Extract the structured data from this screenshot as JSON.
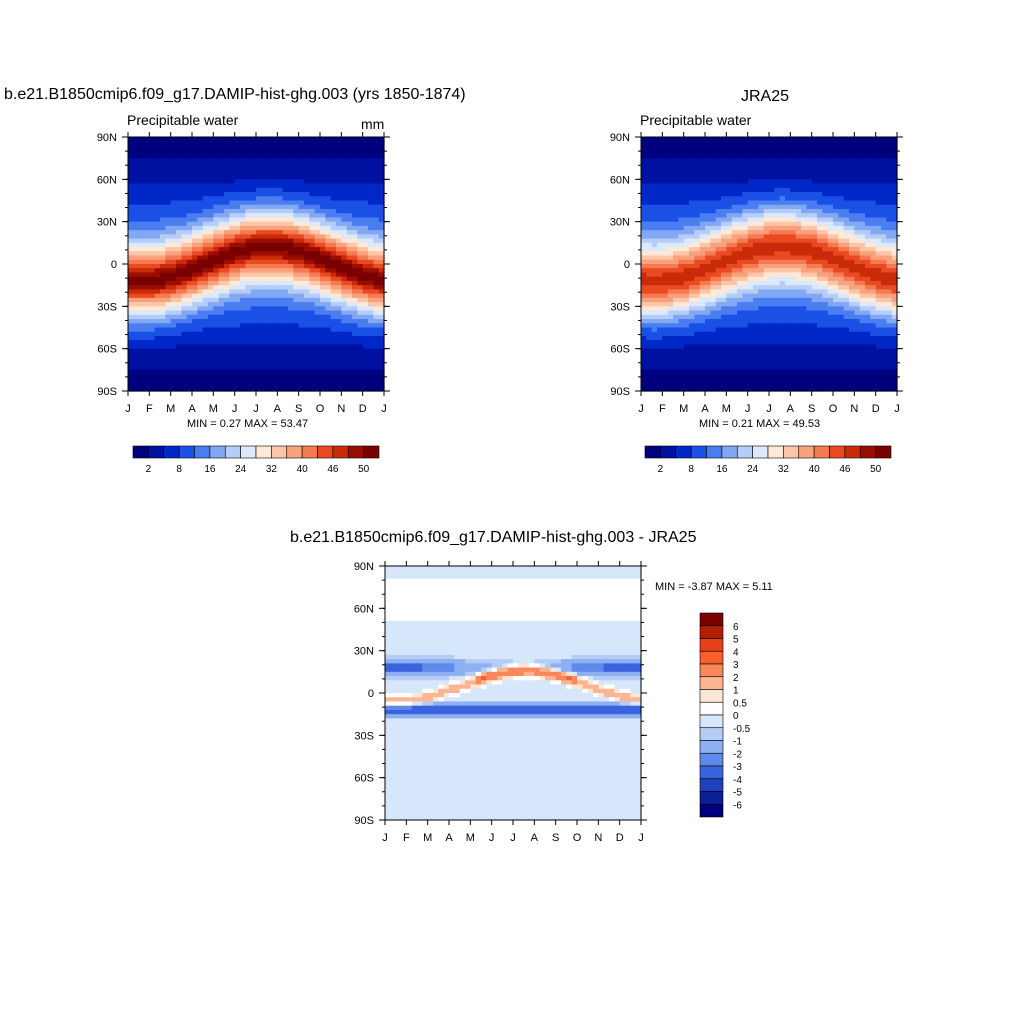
{
  "chart_data": [
    {
      "type": "heatmap",
      "title": "b.e21.B1850cmip6.f09_g17.DAMIP-hist-ghg.003 (yrs 1850-1874)",
      "subtitle_left": "Precipitable water",
      "subtitle_right": "mm",
      "x_ticks": [
        "J",
        "F",
        "M",
        "A",
        "M",
        "J",
        "J",
        "A",
        "S",
        "O",
        "N",
        "D",
        "J"
      ],
      "y_ticks": [
        "90N",
        "60N",
        "30N",
        "0",
        "30S",
        "60S",
        "90S"
      ],
      "stats_text": "MIN =   0.27 MAX =  53.47",
      "min": 0.27,
      "max": 53.47,
      "colorbar_labels": [
        "2",
        "8",
        "16",
        "24",
        "32",
        "40",
        "46",
        "50"
      ],
      "colorbar_orientation": "horizontal"
    },
    {
      "type": "heatmap",
      "title": "JRA25",
      "subtitle_left": "Precipitable water",
      "x_ticks": [
        "J",
        "F",
        "M",
        "A",
        "M",
        "J",
        "J",
        "A",
        "S",
        "O",
        "N",
        "D",
        "J"
      ],
      "y_ticks": [
        "90N",
        "60N",
        "30N",
        "0",
        "30S",
        "60S",
        "90S"
      ],
      "stats_text": "MIN =   0.21 MAX =  49.53",
      "min": 0.21,
      "max": 49.53,
      "colorbar_labels": [
        "2",
        "8",
        "16",
        "24",
        "32",
        "40",
        "46",
        "50"
      ],
      "colorbar_orientation": "horizontal"
    },
    {
      "type": "heatmap",
      "title": "b.e21.B1850cmip6.f09_g17.DAMIP-hist-ghg.003 - JRA25",
      "x_ticks": [
        "J",
        "F",
        "M",
        "A",
        "M",
        "J",
        "J",
        "A",
        "S",
        "O",
        "N",
        "D",
        "J"
      ],
      "y_ticks": [
        "90N",
        "60N",
        "30N",
        "0",
        "30S",
        "60S",
        "90S"
      ],
      "stats_text": "MIN =  -3.87 MAX =   5.11",
      "min": -3.87,
      "max": 5.11,
      "colorbar_labels": [
        "6",
        "5",
        "4",
        "3",
        "2",
        "1",
        "0.5",
        "0",
        "-0.5",
        "-1",
        "-2",
        "-3",
        "-4",
        "-5",
        "-6"
      ],
      "colorbar_orientation": "vertical"
    }
  ],
  "colors": {
    "precip_scale": [
      "#00007f",
      "#0010a0",
      "#0028c8",
      "#1a50e6",
      "#4a7ef0",
      "#82a8f4",
      "#b6cdf8",
      "#dce9fb",
      "#ffe8d6",
      "#fcc5a8",
      "#f9a07c",
      "#f47a52",
      "#ea4a22",
      "#c92a0a",
      "#9a0e02",
      "#7a0000"
    ],
    "diff_scale": [
      "#7a0000",
      "#b01e04",
      "#e4401a",
      "#f8602e",
      "#f9875c",
      "#fbb494",
      "#fde6d4",
      "#ffffff",
      "#d6e6fb",
      "#b4ccf6",
      "#8eb0f2",
      "#5f8aec",
      "#3a64de",
      "#1c40c0",
      "#0a1e96",
      "#00007f"
    ]
  }
}
